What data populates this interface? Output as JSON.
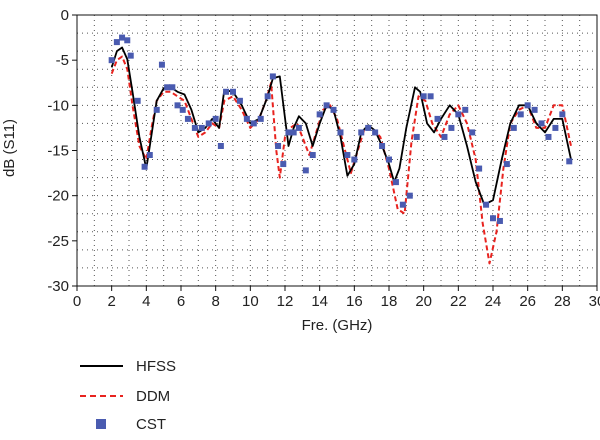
{
  "chart_data": {
    "type": "line",
    "title": "",
    "xlabel": "Fre. (GHz)",
    "ylabel": "dB (S11)",
    "xlim": [
      0,
      30
    ],
    "ylim": [
      -30,
      0
    ],
    "xticks": [
      "0",
      "2",
      "4",
      "6",
      "8",
      "10",
      "12",
      "14",
      "16",
      "18",
      "20",
      "22",
      "24",
      "26",
      "28",
      "30"
    ],
    "yticks": [
      "0",
      "-5",
      "-10",
      "-15",
      "-20",
      "-25",
      "-30"
    ],
    "grid": "dotted",
    "legend_position": "bottom-left",
    "colors": {
      "HFSS": "#000000",
      "DDM": "#e8231f",
      "CST": "#4a5bb0"
    },
    "series": [
      {
        "name": "HFSS",
        "style": "solid",
        "x": [
          2.0,
          2.3,
          2.6,
          2.9,
          3.2,
          3.6,
          4.0,
          4.2,
          4.6,
          5.0,
          5.4,
          5.8,
          6.2,
          6.6,
          7.0,
          7.4,
          7.8,
          8.2,
          8.5,
          9.0,
          9.5,
          10.0,
          10.5,
          11.0,
          11.3,
          11.7,
          12.2,
          12.5,
          12.8,
          13.2,
          13.6,
          14.0,
          14.4,
          14.8,
          15.2,
          15.6,
          16.0,
          16.4,
          16.8,
          17.2,
          17.6,
          18.0,
          18.3,
          18.6,
          19.0,
          19.5,
          19.8,
          20.2,
          20.6,
          21.0,
          21.5,
          22.0,
          22.5,
          23.0,
          23.5,
          24.0,
          24.5,
          25.0,
          25.5,
          26.0,
          26.5,
          27.0,
          27.5,
          28.0,
          28.5
        ],
        "y": [
          -5.8,
          -4.0,
          -3.6,
          -4.9,
          -8.5,
          -13.5,
          -17.0,
          -14.5,
          -9.5,
          -8.1,
          -8.0,
          -8.5,
          -8.8,
          -10.5,
          -13.0,
          -12.5,
          -11.5,
          -12.5,
          -8.3,
          -8.5,
          -10.0,
          -12.0,
          -11.5,
          -9.0,
          -7.0,
          -6.8,
          -14.5,
          -12.5,
          -11.2,
          -12.0,
          -14.5,
          -12.0,
          -10.0,
          -10.5,
          -13.5,
          -17.8,
          -16.5,
          -13.0,
          -12.2,
          -12.8,
          -14.5,
          -16.5,
          -18.5,
          -17.0,
          -12.5,
          -8.0,
          -8.5,
          -12.0,
          -13.0,
          -11.5,
          -10.0,
          -11.0,
          -14.5,
          -18.5,
          -21.0,
          -20.5,
          -16.0,
          -12.0,
          -10.0,
          -10.0,
          -12.0,
          -13.0,
          -11.5,
          -11.5,
          -16.0
        ]
      },
      {
        "name": "DDM",
        "style": "dashed",
        "x": [
          2.0,
          2.3,
          2.6,
          2.9,
          3.2,
          3.6,
          4.0,
          4.3,
          4.6,
          5.0,
          5.4,
          5.8,
          6.2,
          6.6,
          7.0,
          7.4,
          7.8,
          8.2,
          8.5,
          9.0,
          9.5,
          10.0,
          10.5,
          10.9,
          11.2,
          11.5,
          11.7,
          12.0,
          12.3,
          12.7,
          13.0,
          13.4,
          13.8,
          14.2,
          14.6,
          15.0,
          15.4,
          15.8,
          16.2,
          16.6,
          17.0,
          17.5,
          18.0,
          18.5,
          18.9,
          19.3,
          19.7,
          20.1,
          20.5,
          21.0,
          21.5,
          22.0,
          22.5,
          23.0,
          23.4,
          23.8,
          24.2,
          24.6,
          25.0,
          25.5,
          26.0,
          26.5,
          27.0,
          27.5,
          28.0,
          28.5
        ],
        "y": [
          -6.5,
          -5.0,
          -4.6,
          -6.0,
          -10.0,
          -14.5,
          -16.0,
          -12.5,
          -9.5,
          -8.5,
          -8.5,
          -9.0,
          -9.5,
          -11.5,
          -13.5,
          -13.0,
          -12.0,
          -12.5,
          -9.5,
          -9.0,
          -10.5,
          -12.5,
          -11.5,
          -9.5,
          -7.5,
          -15.0,
          -18.0,
          -13.5,
          -12.5,
          -12.0,
          -13.5,
          -15.5,
          -13.0,
          -10.5,
          -10.0,
          -11.5,
          -14.5,
          -17.5,
          -15.0,
          -12.5,
          -12.5,
          -13.5,
          -17.0,
          -21.5,
          -22.0,
          -14.0,
          -9.0,
          -9.5,
          -12.0,
          -13.5,
          -11.0,
          -10.0,
          -12.0,
          -16.0,
          -23.0,
          -27.5,
          -24.0,
          -17.0,
          -12.0,
          -10.5,
          -10.0,
          -12.5,
          -12.5,
          -10.0,
          -10.0,
          -14.5
        ]
      },
      {
        "name": "CST",
        "style": "markers",
        "x": [
          2.0,
          2.3,
          2.6,
          2.9,
          3.1,
          3.5,
          3.9,
          4.2,
          4.6,
          4.9,
          5.2,
          5.5,
          5.8,
          6.1,
          6.4,
          6.8,
          7.2,
          7.6,
          8.0,
          8.3,
          8.6,
          9.0,
          9.4,
          9.8,
          10.2,
          10.6,
          11.0,
          11.3,
          11.6,
          11.9,
          12.2,
          12.5,
          12.8,
          13.2,
          13.6,
          14.0,
          14.4,
          14.8,
          15.2,
          15.6,
          16.0,
          16.4,
          16.8,
          17.2,
          17.6,
          18.0,
          18.4,
          18.8,
          19.2,
          19.6,
          20.0,
          20.4,
          20.8,
          21.2,
          21.6,
          22.0,
          22.4,
          22.8,
          23.2,
          23.6,
          24.0,
          24.4,
          24.8,
          25.2,
          25.6,
          26.0,
          26.4,
          26.8,
          27.2,
          27.6,
          28.0,
          28.4
        ],
        "y": [
          -5.0,
          -3.0,
          -2.5,
          -2.8,
          -4.5,
          -9.5,
          -16.8,
          -15.5,
          -10.5,
          -5.5,
          -8.0,
          -8.0,
          -10.0,
          -10.5,
          -11.5,
          -12.5,
          -12.5,
          -12.0,
          -11.5,
          -14.5,
          -8.5,
          -8.5,
          -9.5,
          -11.5,
          -12.0,
          -11.5,
          -9.0,
          -6.8,
          -14.5,
          -16.5,
          -13.0,
          -13.0,
          -12.5,
          -17.2,
          -15.5,
          -11.0,
          -10.0,
          -10.5,
          -13.0,
          -15.5,
          -16.0,
          -13.0,
          -12.5,
          -13.0,
          -14.5,
          -16.0,
          -18.5,
          -21.0,
          -20.0,
          -13.5,
          -9.0,
          -9.0,
          -11.5,
          -13.5,
          -12.5,
          -11.0,
          -10.5,
          -13.0,
          -17.0,
          -21.0,
          -22.5,
          -22.8,
          -16.5,
          -12.5,
          -11.0,
          -10.0,
          -10.5,
          -12.0,
          -13.5,
          -12.5,
          -11.0,
          -16.2
        ]
      }
    ]
  }
}
